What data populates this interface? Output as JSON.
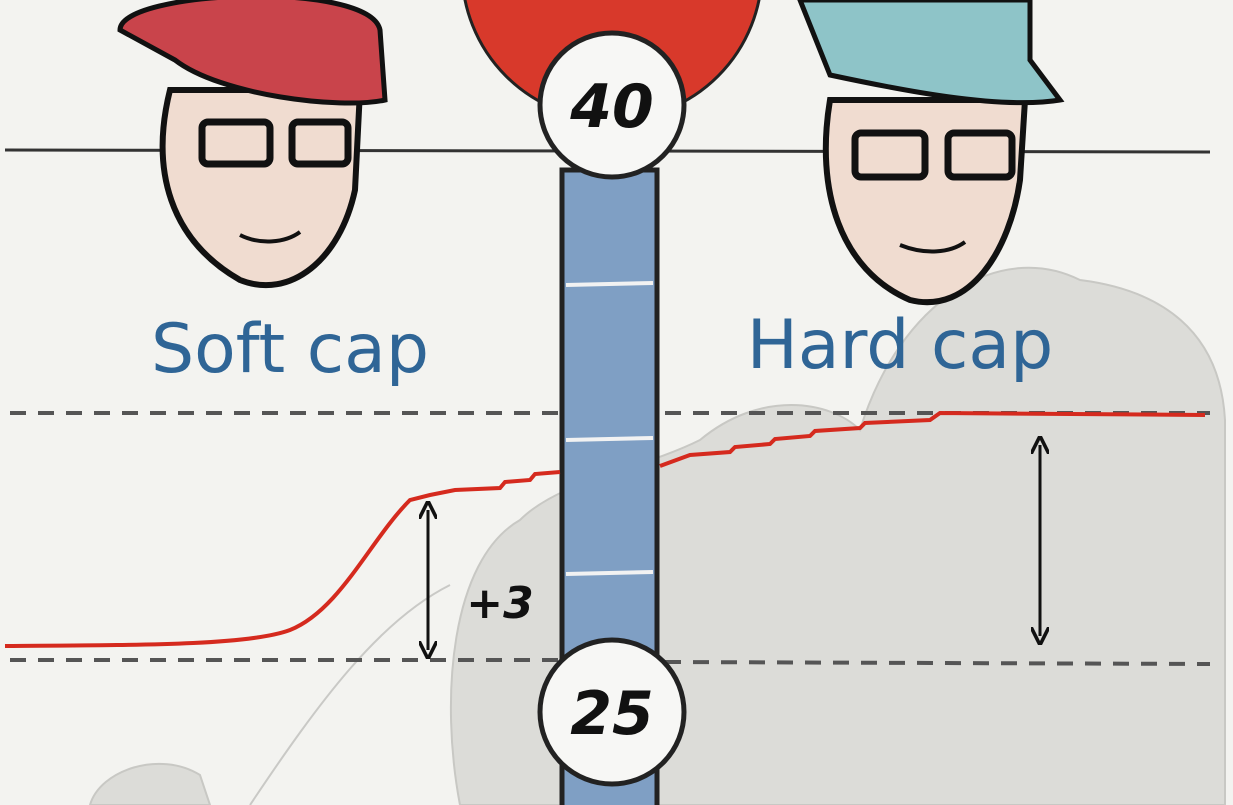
{
  "gauge": {
    "top_label": "40",
    "bottom_label": "25"
  },
  "panels": [
    {
      "label": "Soft cap",
      "annotation": "+3"
    },
    {
      "label": "Hard cap"
    }
  ]
}
